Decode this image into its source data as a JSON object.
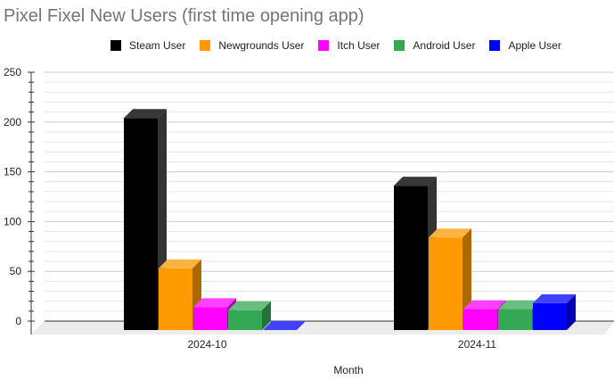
{
  "chart_data": {
    "type": "bar",
    "title": "Pixel Fixel New Users (first time opening app)",
    "xlabel": "Month",
    "ylabel": "",
    "categories": [
      "2024-10",
      "2024-11"
    ],
    "series": [
      {
        "name": "Steam User",
        "color": "#000000",
        "values": [
          213,
          145
        ]
      },
      {
        "name": "Newgrounds User",
        "color": "#ff9900",
        "values": [
          62,
          93
        ]
      },
      {
        "name": "Itch User",
        "color": "#ff00ff",
        "values": [
          23,
          21
        ]
      },
      {
        "name": "Android User",
        "color": "#34a853",
        "values": [
          20,
          21
        ]
      },
      {
        "name": "Apple User",
        "color": "#0000ff",
        "values": [
          0,
          27
        ]
      }
    ],
    "ylim": [
      0,
      250
    ],
    "yticks": [
      0,
      50,
      100,
      150,
      200,
      250
    ],
    "grid": true,
    "legend_position": "top",
    "style": "3d"
  }
}
